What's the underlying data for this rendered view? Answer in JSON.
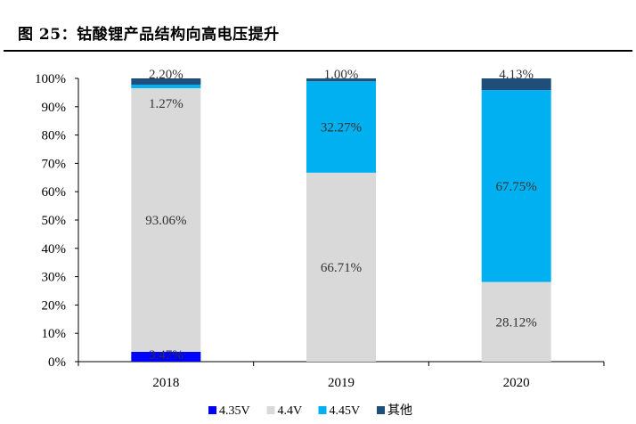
{
  "figure": {
    "title": "图 25：钴酸锂产品结构向高电压提升"
  },
  "chart_data": {
    "type": "bar",
    "stacked": true,
    "categories": [
      "2018",
      "2019",
      "2020"
    ],
    "ylim": [
      0,
      100
    ],
    "yticks": [
      "0%",
      "10%",
      "20%",
      "30%",
      "40%",
      "50%",
      "60%",
      "70%",
      "80%",
      "90%",
      "100%"
    ],
    "legend_position": "bottom",
    "series": [
      {
        "name": "4.35V",
        "color": "#0000FF",
        "values": [
          3.47,
          0,
          0
        ],
        "labels": [
          "3.47%",
          "",
          ""
        ]
      },
      {
        "name": "4.4V",
        "color": "#D9D9D9",
        "values": [
          93.06,
          66.71,
          28.12
        ],
        "labels": [
          "93.06%",
          "66.71%",
          "28.12%"
        ]
      },
      {
        "name": "4.45V",
        "color": "#00B0F0",
        "values": [
          1.27,
          32.27,
          67.75
        ],
        "labels": [
          "1.27%",
          "32.27%",
          "67.75%"
        ]
      },
      {
        "name": "其他",
        "color": "#1F4E79",
        "values": [
          2.2,
          1.0,
          4.13
        ],
        "labels": [
          "2.20%",
          "1.00%",
          "4.13%"
        ]
      }
    ]
  }
}
